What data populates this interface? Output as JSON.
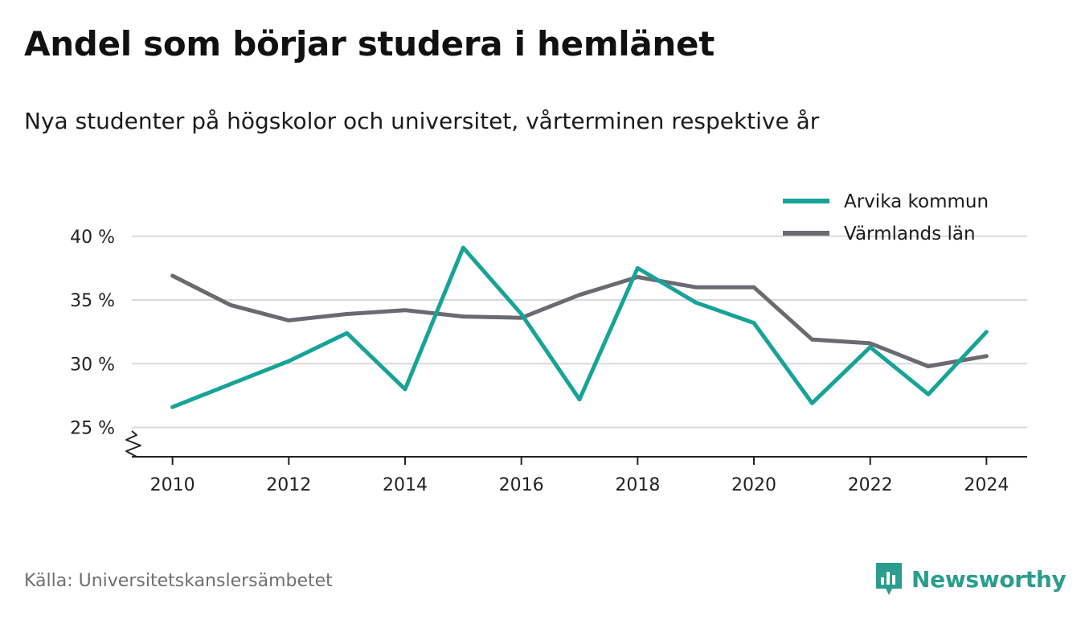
{
  "header": {
    "title": "Andel som börjar studera i hemlänet",
    "subtitle": "Nya studenter på högskolor och universitet, vårterminen respektive år"
  },
  "footer": {
    "source": "Källa: Universitetskanslersämbetet",
    "brand": "Newsworthy"
  },
  "colors": {
    "arvika": "#17a398",
    "varmland": "#6b6a72",
    "grid": "#d9d9d9",
    "axis": "#222222",
    "brand": "#2a9d8f"
  },
  "chart_data": {
    "type": "line",
    "title": "Andel som börjar studera i hemlänet",
    "subtitle": "Nya studenter på högskolor och universitet, vårterminen respektive år",
    "x": [
      2010,
      2011,
      2012,
      2013,
      2014,
      2015,
      2016,
      2017,
      2018,
      2019,
      2020,
      2021,
      2022,
      2023,
      2024
    ],
    "series": [
      {
        "name": "Arvika kommun",
        "color": "#17a398",
        "values": [
          26.6,
          28.4,
          30.2,
          32.4,
          28.0,
          39.1,
          33.9,
          27.2,
          37.5,
          34.8,
          33.2,
          26.9,
          31.3,
          27.6,
          32.5
        ]
      },
      {
        "name": "Värmlands län",
        "color": "#6b6a72",
        "values": [
          36.9,
          34.6,
          33.4,
          33.9,
          34.2,
          33.7,
          33.6,
          35.4,
          36.8,
          36.0,
          36.0,
          31.9,
          31.6,
          29.8,
          30.6
        ]
      }
    ],
    "xticks": [
      2010,
      2012,
      2014,
      2016,
      2018,
      2020,
      2022,
      2024
    ],
    "xtick_labels": [
      "2010",
      "2012",
      "2014",
      "2016",
      "2018",
      "2020",
      "2022",
      "2024"
    ],
    "yticks": [
      25,
      30,
      35,
      40
    ],
    "ytick_labels": [
      "25 %",
      "30 %",
      "35 %",
      "40 %"
    ],
    "ylim": [
      22.7,
      41.5
    ],
    "xlim": [
      2009.3,
      2024.7
    ],
    "xlabel": "",
    "ylabel": "",
    "grid": true,
    "axis_break": true,
    "legend_position": "top-right"
  }
}
